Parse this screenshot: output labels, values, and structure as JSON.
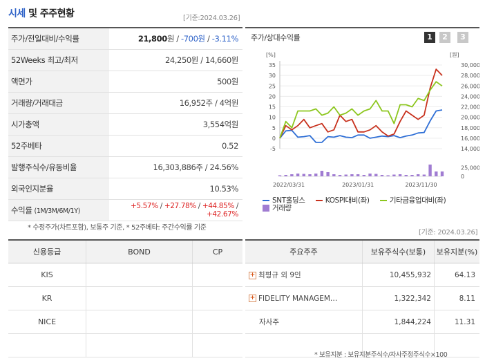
{
  "header": {
    "title_main": "시세",
    "title_rest": "및 주주현황",
    "base_date": "[기준:2024.03.26]"
  },
  "price_rows": [
    {
      "label": "주가/전일대비/수익률",
      "price": "21,800",
      "unit": "원",
      "change": "-700원",
      "rate": "-3.11%"
    },
    {
      "label": "52Weeks 최고/최저",
      "value": "24,250원 / 14,660원"
    },
    {
      "label": "액면가",
      "value": "500원"
    },
    {
      "label": "거래량/거래대금",
      "value": "16,952주 / 4억원"
    },
    {
      "label": "시가총액",
      "value": "3,554억원"
    },
    {
      "label": "52주베타",
      "value": "0.52"
    },
    {
      "label": "발행주식수/유동비율",
      "value": "16,303,886주 / 24.56%"
    },
    {
      "label": "외국인지분율",
      "value": "10.53%"
    },
    {
      "label": "수익률",
      "label_sub": "(1M/3M/6M/1Y)",
      "returns": [
        "+5.57%",
        "+27.78%",
        "+44.85%",
        "+42.67%"
      ]
    }
  ],
  "note_left": "* 수정주가(차트포함), 보통주 기준, * 52주베타: 주간수익률 기준",
  "chart_section": {
    "title": "주가/상대수익률",
    "pages": [
      "1",
      "2",
      "3"
    ],
    "active_page": "1",
    "left_unit": "[%]",
    "right_unit": "[원]",
    "base_date": "[기준: 2024.03.26]",
    "legend": [
      {
        "name": "SNT홀딩스",
        "color": "#2f6fd6"
      },
      {
        "name": "KOSPI대비(좌)",
        "color": "#c8321e"
      },
      {
        "name": "기타금융업대비(좌)",
        "color": "#8cc61e"
      },
      {
        "name": "거래량",
        "color": "#a07cd2"
      }
    ]
  },
  "chart_data": {
    "type": "line",
    "x_ticks": [
      "2022/03/31",
      "2023/01/31",
      "2023/11/30"
    ],
    "y_left_ticks": [
      -5,
      0,
      5,
      10,
      15,
      20,
      25,
      30,
      35
    ],
    "y_left_range": [
      -5,
      35
    ],
    "y_right_ticks": [
      14000,
      16000,
      18000,
      20000,
      22000,
      24000,
      26000,
      28000,
      30000
    ],
    "y_right_range": [
      14000,
      30000
    ],
    "volume_ticks": [
      0,
      25000
    ],
    "volume_range": [
      0,
      40000
    ],
    "series": [
      {
        "name": "SNT홀딩스",
        "axis": "right",
        "color": "#2f6fd6",
        "values": [
          16000,
          17400,
          17500,
          16200,
          16300,
          16500,
          15200,
          15200,
          16300,
          16200,
          16500,
          16200,
          16100,
          16600,
          16600,
          16000,
          16200,
          16400,
          16300,
          16500,
          16100,
          16400,
          16600,
          17000,
          17100,
          19300,
          21200,
          21400
        ]
      },
      {
        "name": "KOSPI대비(좌)",
        "axis": "left",
        "color": "#c8321e",
        "values": [
          0,
          6,
          4,
          6,
          9,
          5,
          6,
          7,
          3,
          4,
          11,
          8,
          9,
          3,
          3,
          4,
          6,
          3,
          1,
          2,
          8,
          13,
          11,
          9,
          11,
          24,
          33,
          30
        ]
      },
      {
        "name": "기타금융업대비(좌)",
        "axis": "left",
        "color": "#8cc61e",
        "values": [
          0,
          8,
          5,
          13,
          13,
          13,
          14,
          11,
          12,
          15,
          11,
          12,
          14,
          11,
          13,
          14,
          18,
          13,
          13,
          7,
          16,
          16,
          15,
          19,
          18,
          23,
          27,
          25
        ]
      },
      {
        "name": "거래량",
        "axis": "volume",
        "color": "#a07cd2",
        "values": [
          3000,
          4000,
          6000,
          8000,
          7000,
          6000,
          8000,
          16000,
          12000,
          6000,
          4000,
          5000,
          6000,
          6000,
          4000,
          8000,
          7000,
          4000,
          3000,
          5000,
          6000,
          4000,
          4000,
          6000,
          5000,
          34000,
          14000,
          14000
        ]
      }
    ]
  },
  "credit_table": {
    "headers": [
      "신용등급",
      "BOND",
      "CP"
    ],
    "rows": [
      [
        "KIS",
        "",
        ""
      ],
      [
        "KR",
        "",
        ""
      ],
      [
        "NICE",
        "",
        ""
      ],
      [
        "",
        "",
        ""
      ]
    ]
  },
  "holder_table": {
    "headers": [
      "주요주주",
      "보유주식수(보통)",
      "보유지분(%)"
    ],
    "rows": [
      {
        "name": "최평규 외 9인",
        "expand": true,
        "shares": "10,455,932",
        "pct": "64.13"
      },
      {
        "name": "FIDELITY MANAGEM…",
        "expand": true,
        "shares": "1,322,342",
        "pct": "8.11"
      },
      {
        "name": "자사주",
        "expand": false,
        "shares": "1,844,224",
        "pct": "11.31"
      },
      {
        "name": "",
        "expand": false,
        "shares": "",
        "pct": ""
      }
    ]
  },
  "note_right": "* 보유지분 : 보유지분주식수/자사주정주식수×100"
}
